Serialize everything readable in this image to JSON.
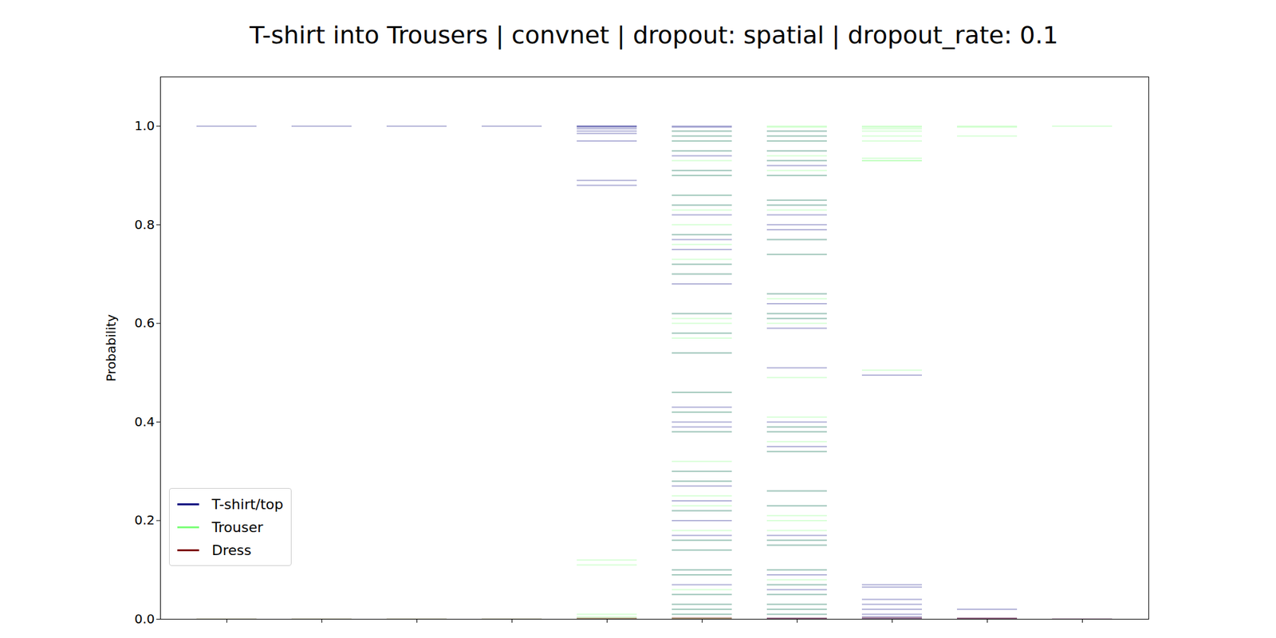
{
  "chart_data": {
    "type": "strip",
    "title": "T-shirt into Trousers | convnet | dropout: spatial | dropout_rate: 0.1",
    "y_label": "Probability",
    "categories": [
      null,
      null,
      null,
      null,
      null,
      null,
      null,
      null,
      null,
      null
    ],
    "ylim": [
      0,
      1.1
    ],
    "yticks": [
      {
        "value": 0,
        "label": "0.0"
      },
      {
        "value": 0.2,
        "label": "0.2"
      },
      {
        "value": 0.4,
        "label": "0.4"
      },
      {
        "value": 0.6,
        "label": "0.6"
      },
      {
        "value": 0.8,
        "label": "0.8"
      },
      {
        "value": 1.0,
        "label": "1.0"
      }
    ],
    "legend": "lower left",
    "series": [
      {
        "name": "T-shirt/top",
        "color": "#00007f",
        "values": [
          [
            1.0
          ],
          [
            1.0
          ],
          [
            1.0
          ],
          [
            1.0
          ],
          [
            1.0,
            1.0,
            0.998,
            0.995,
            0.99,
            0.985,
            0.97,
            0.89,
            0.88
          ],
          [
            1.0,
            0.998,
            0.99,
            0.98,
            0.97,
            0.95,
            0.94,
            0.91,
            0.9,
            0.86,
            0.84,
            0.82,
            0.78,
            0.77,
            0.75,
            0.72,
            0.7,
            0.68,
            0.62,
            0.58,
            0.54,
            0.46,
            0.43,
            0.42,
            0.4,
            0.39,
            0.38,
            0.3,
            0.28,
            0.27,
            0.24,
            0.22,
            0.2,
            0.17,
            0.16,
            0.14,
            0.1,
            0.09,
            0.07,
            0.05,
            0.03,
            0.02,
            0.01
          ],
          [
            0.0,
            0.002,
            0.01,
            0.02,
            0.03,
            0.05,
            0.06,
            0.07,
            0.09,
            0.1,
            0.15,
            0.16,
            0.17,
            0.23,
            0.26,
            0.34,
            0.35,
            0.38,
            0.39,
            0.4,
            0.51,
            0.59,
            0.61,
            0.62,
            0.64,
            0.66,
            0.74,
            0.77,
            0.79,
            0.8,
            0.82,
            0.84,
            0.85,
            0.9,
            0.92,
            0.93,
            0.95,
            0.97,
            0.98,
            0.99
          ],
          [
            0.0,
            0.002,
            0.005,
            0.01,
            0.02,
            0.03,
            0.04,
            0.065,
            0.07,
            0.495
          ],
          [
            0.0,
            0.002,
            0.02
          ],
          [
            0.0
          ]
        ]
      },
      {
        "name": "Trouser",
        "color": "#7dff7a",
        "values": [
          [
            0.0
          ],
          [
            0.0
          ],
          [
            0.0
          ],
          [
            0.0
          ],
          [
            0.0,
            0.002,
            0.005,
            0.01,
            0.11,
            0.12
          ],
          [
            0.0,
            0.002,
            0.01,
            0.02,
            0.03,
            0.05,
            0.06,
            0.09,
            0.1,
            0.14,
            0.16,
            0.18,
            0.22,
            0.23,
            0.25,
            0.28,
            0.3,
            0.32,
            0.38,
            0.42,
            0.46,
            0.54,
            0.57,
            0.58,
            0.6,
            0.61,
            0.62,
            0.7,
            0.72,
            0.73,
            0.76,
            0.78,
            0.8,
            0.83,
            0.84,
            0.86,
            0.9,
            0.91,
            0.93,
            0.95,
            0.97,
            0.98,
            0.99
          ],
          [
            1.0,
            0.998,
            0.99,
            0.98,
            0.97,
            0.95,
            0.94,
            0.93,
            0.91,
            0.9,
            0.85,
            0.84,
            0.83,
            0.77,
            0.74,
            0.66,
            0.65,
            0.62,
            0.61,
            0.6,
            0.49,
            0.41,
            0.39,
            0.38,
            0.36,
            0.34,
            0.26,
            0.23,
            0.21,
            0.2,
            0.18,
            0.16,
            0.15,
            0.1,
            0.08,
            0.07,
            0.05,
            0.03,
            0.02,
            0.01
          ],
          [
            1.0,
            0.998,
            0.995,
            0.99,
            0.98,
            0.97,
            0.935,
            0.93,
            0.93,
            0.505
          ],
          [
            1.0,
            0.998,
            0.98
          ],
          [
            1.0
          ]
        ]
      },
      {
        "name": "Dress",
        "color": "#7f0000",
        "values": [
          [
            0.0
          ],
          [
            0.0
          ],
          [
            0.0
          ],
          [
            0.0
          ],
          [
            0.0,
            0.002
          ],
          [
            0.0,
            0.001,
            0.003
          ],
          [
            0.0,
            0.002
          ],
          [
            0.0,
            0.003
          ],
          [
            0.0,
            0.002
          ],
          [
            0.0
          ]
        ]
      }
    ]
  }
}
